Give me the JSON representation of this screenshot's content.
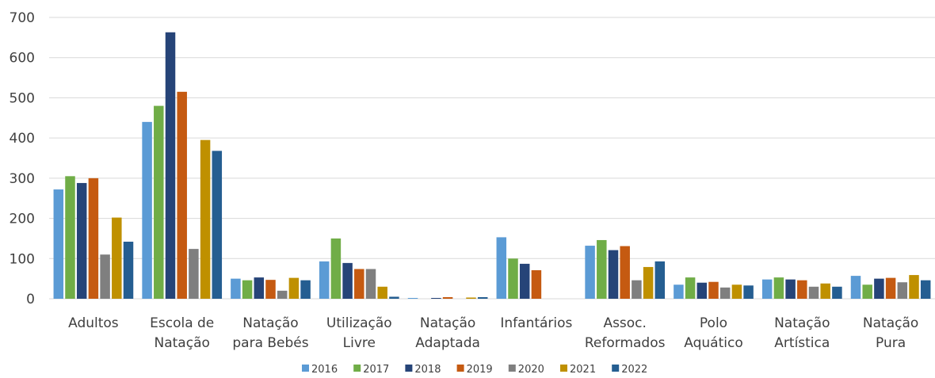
{
  "chart_data": {
    "type": "bar",
    "title": "",
    "xlabel": "",
    "ylabel": "",
    "ylim": [
      0,
      700
    ],
    "yticks": [
      0,
      100,
      200,
      300,
      400,
      500,
      600,
      700
    ],
    "grid": true,
    "legend_position": "bottom",
    "categories": [
      [
        "Adultos"
      ],
      [
        "Escola de",
        "Natação"
      ],
      [
        "Natação",
        "para Bebés"
      ],
      [
        "Utilização",
        "Livre"
      ],
      [
        "Natação",
        "Adaptada"
      ],
      [
        "Infantários"
      ],
      [
        "Assoc.",
        "Reformados"
      ],
      [
        "Polo",
        "Aquático"
      ],
      [
        "Natação",
        "Artística"
      ],
      [
        "Natação",
        "Pura"
      ]
    ],
    "series": [
      {
        "name": "2016",
        "color": "#5b9bd5",
        "values": [
          272,
          440,
          50,
          93,
          2,
          153,
          132,
          35,
          48,
          57
        ]
      },
      {
        "name": "2017",
        "color": "#70ad47",
        "values": [
          305,
          480,
          46,
          150,
          0,
          100,
          146,
          53,
          53,
          35
        ]
      },
      {
        "name": "2018",
        "color": "#264478",
        "values": [
          288,
          663,
          53,
          89,
          2,
          87,
          121,
          40,
          48,
          50
        ]
      },
      {
        "name": "2019",
        "color": "#c55a11",
        "values": [
          300,
          515,
          47,
          74,
          4,
          71,
          131,
          42,
          46,
          52
        ]
      },
      {
        "name": "2020",
        "color": "#7f7f7f",
        "values": [
          110,
          124,
          20,
          74,
          0,
          0,
          46,
          28,
          30,
          41
        ]
      },
      {
        "name": "2021",
        "color": "#bf9000",
        "values": [
          202,
          395,
          52,
          30,
          3,
          0,
          79,
          35,
          38,
          59
        ]
      },
      {
        "name": "2022",
        "color": "#255e91",
        "values": [
          142,
          368,
          46,
          5,
          4,
          0,
          93,
          33,
          30,
          46
        ]
      }
    ]
  }
}
